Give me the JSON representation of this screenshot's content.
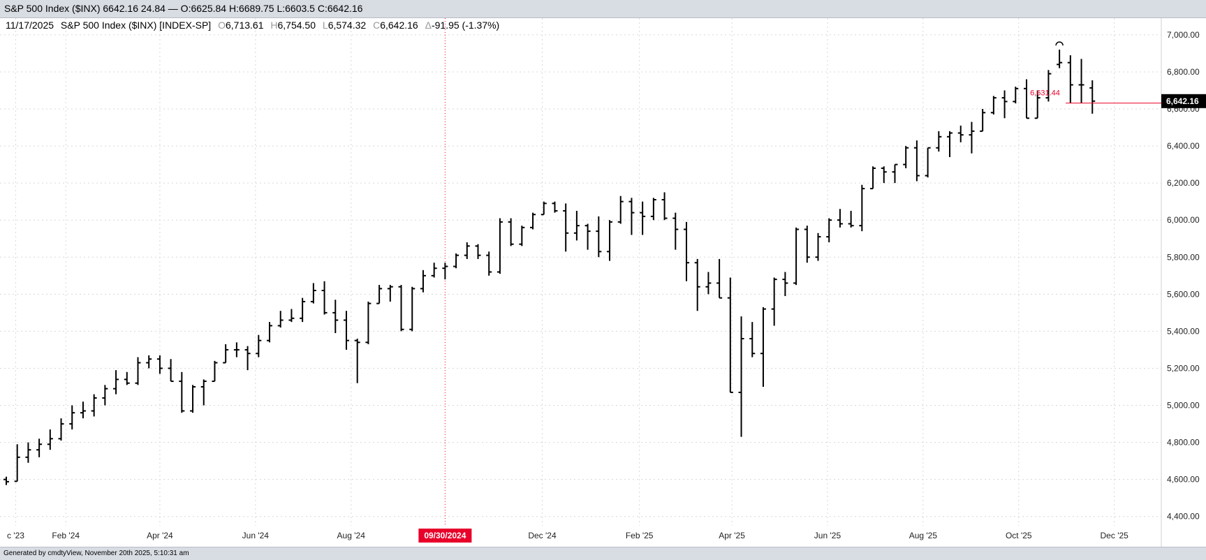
{
  "window": {
    "title": "S&P 500 Index ($INX) 6642.16 24.84 — O:6625.84 H:6689.75 L:6603.5 C:6642.16"
  },
  "footer": {
    "generated": "Generated by cmdtyView, November 20th 2025, 5:10:31 am"
  },
  "chart_data": {
    "type": "ohlc",
    "symbol": "S&P 500 Index ($INX) [INDEX-SP]",
    "header": {
      "date": "11/17/2025",
      "name": "S&P 500 Index ($INX) [INDEX-SP]",
      "open_label": "O",
      "open": "6,713.61",
      "high_label": "H",
      "high": "6,754.50",
      "low_label": "L",
      "low": "6,574.32",
      "close_label": "C",
      "close": "6,642.16",
      "change_label": "Δ",
      "change": "-91.95 (-1.37%)"
    },
    "y_axis": {
      "ylim": [
        4350,
        7090
      ],
      "ticks": [
        "7,000.00",
        "6,800.00",
        "6,600.00",
        "6,400.00",
        "6,200.00",
        "6,000.00",
        "5,800.00",
        "5,600.00",
        "5,400.00",
        "5,200.00",
        "5,000.00",
        "4,800.00",
        "4,600.00",
        "4,400.00"
      ],
      "tick_values": [
        7000,
        6800,
        6600,
        6400,
        6200,
        6000,
        5800,
        5600,
        5400,
        5200,
        5000,
        4800,
        4600,
        4400
      ]
    },
    "x_axis": {
      "xlim": [
        "2023-12-21",
        "2025-12-31"
      ],
      "ticks": [
        {
          "label": "c '23",
          "date": "2023-12-31"
        },
        {
          "label": "Feb '24",
          "date": "2024-02-01"
        },
        {
          "label": "Apr '24",
          "date": "2024-04-01"
        },
        {
          "label": "Jun '24",
          "date": "2024-06-01"
        },
        {
          "label": "Aug '24",
          "date": "2024-08-01"
        },
        {
          "label": "Dec '24",
          "date": "2024-12-01"
        },
        {
          "label": "Feb '25",
          "date": "2025-02-01"
        },
        {
          "label": "Apr '25",
          "date": "2025-04-01"
        },
        {
          "label": "Jun '25",
          "date": "2025-06-01"
        },
        {
          "label": "Aug '25",
          "date": "2025-08-01"
        },
        {
          "label": "Oct '25",
          "date": "2025-10-01"
        },
        {
          "label": "Dec '25",
          "date": "2025-12-01"
        }
      ]
    },
    "grid": true,
    "crosshair": {
      "date": "2024-09-30",
      "label": "09/30/2024"
    },
    "last_price": {
      "value": 6642.16,
      "label": "6,642.16"
    },
    "reference_line": {
      "value": 6631.44,
      "label": "6,631.44",
      "from_date": "2025-10-31"
    },
    "colors": {
      "bars": "#000000",
      "accent": "#e8002a",
      "grid": "#d8d8d8"
    },
    "bars": [
      {
        "d": "2023-12-25",
        "o": 4600,
        "h": 4615,
        "l": 4570,
        "c": 4588
      },
      {
        "d": "2024-01-01",
        "o": 4590,
        "h": 4790,
        "l": 4590,
        "c": 4720
      },
      {
        "d": "2024-01-08",
        "o": 4720,
        "h": 4800,
        "l": 4690,
        "c": 4760
      },
      {
        "d": "2024-01-15",
        "o": 4760,
        "h": 4820,
        "l": 4720,
        "c": 4790
      },
      {
        "d": "2024-01-22",
        "o": 4790,
        "h": 4870,
        "l": 4760,
        "c": 4820
      },
      {
        "d": "2024-01-29",
        "o": 4820,
        "h": 4930,
        "l": 4810,
        "c": 4900
      },
      {
        "d": "2024-02-05",
        "o": 4900,
        "h": 5000,
        "l": 4870,
        "c": 4960
      },
      {
        "d": "2024-02-12",
        "o": 4960,
        "h": 5020,
        "l": 4930,
        "c": 4970
      },
      {
        "d": "2024-02-19",
        "o": 4970,
        "h": 5060,
        "l": 4940,
        "c": 5040
      },
      {
        "d": "2024-02-26",
        "o": 5040,
        "h": 5110,
        "l": 5000,
        "c": 5090
      },
      {
        "d": "2024-03-04",
        "o": 5090,
        "h": 5190,
        "l": 5060,
        "c": 5140
      },
      {
        "d": "2024-03-11",
        "o": 5140,
        "h": 5180,
        "l": 5110,
        "c": 5120
      },
      {
        "d": "2024-03-18",
        "o": 5120,
        "h": 5260,
        "l": 5110,
        "c": 5230
      },
      {
        "d": "2024-03-25",
        "o": 5230,
        "h": 5270,
        "l": 5200,
        "c": 5250
      },
      {
        "d": "2024-04-01",
        "o": 5250,
        "h": 5270,
        "l": 5170,
        "c": 5200
      },
      {
        "d": "2024-04-08",
        "o": 5200,
        "h": 5250,
        "l": 5130,
        "c": 5130
      },
      {
        "d": "2024-04-15",
        "o": 5130,
        "h": 5180,
        "l": 4960,
        "c": 4970
      },
      {
        "d": "2024-04-22",
        "o": 4970,
        "h": 5110,
        "l": 4960,
        "c": 5100
      },
      {
        "d": "2024-04-29",
        "o": 5100,
        "h": 5140,
        "l": 5000,
        "c": 5130
      },
      {
        "d": "2024-05-06",
        "o": 5130,
        "h": 5240,
        "l": 5130,
        "c": 5230
      },
      {
        "d": "2024-05-13",
        "o": 5230,
        "h": 5330,
        "l": 5230,
        "c": 5300
      },
      {
        "d": "2024-05-20",
        "o": 5300,
        "h": 5340,
        "l": 5260,
        "c": 5300
      },
      {
        "d": "2024-05-27",
        "o": 5300,
        "h": 5320,
        "l": 5190,
        "c": 5280
      },
      {
        "d": "2024-06-03",
        "o": 5280,
        "h": 5380,
        "l": 5260,
        "c": 5350
      },
      {
        "d": "2024-06-10",
        "o": 5350,
        "h": 5450,
        "l": 5340,
        "c": 5430
      },
      {
        "d": "2024-06-17",
        "o": 5430,
        "h": 5510,
        "l": 5420,
        "c": 5460
      },
      {
        "d": "2024-06-24",
        "o": 5460,
        "h": 5520,
        "l": 5450,
        "c": 5470
      },
      {
        "d": "2024-07-01",
        "o": 5470,
        "h": 5580,
        "l": 5450,
        "c": 5560
      },
      {
        "d": "2024-07-08",
        "o": 5560,
        "h": 5660,
        "l": 5550,
        "c": 5620
      },
      {
        "d": "2024-07-15",
        "o": 5620,
        "h": 5670,
        "l": 5490,
        "c": 5500
      },
      {
        "d": "2024-07-22",
        "o": 5500,
        "h": 5570,
        "l": 5390,
        "c": 5460
      },
      {
        "d": "2024-07-29",
        "o": 5460,
        "h": 5510,
        "l": 5300,
        "c": 5350
      },
      {
        "d": "2024-08-05",
        "o": 5350,
        "h": 5360,
        "l": 5120,
        "c": 5340
      },
      {
        "d": "2024-08-12",
        "o": 5340,
        "h": 5560,
        "l": 5330,
        "c": 5550
      },
      {
        "d": "2024-08-19",
        "o": 5550,
        "h": 5650,
        "l": 5550,
        "c": 5630
      },
      {
        "d": "2024-08-26",
        "o": 5630,
        "h": 5650,
        "l": 5560,
        "c": 5640
      },
      {
        "d": "2024-09-02",
        "o": 5640,
        "h": 5650,
        "l": 5400,
        "c": 5410
      },
      {
        "d": "2024-09-09",
        "o": 5410,
        "h": 5640,
        "l": 5400,
        "c": 5630
      },
      {
        "d": "2024-09-16",
        "o": 5630,
        "h": 5730,
        "l": 5610,
        "c": 5700
      },
      {
        "d": "2024-09-23",
        "o": 5700,
        "h": 5770,
        "l": 5690,
        "c": 5740
      },
      {
        "d": "2024-09-30",
        "o": 5740,
        "h": 5770,
        "l": 5680,
        "c": 5750
      },
      {
        "d": "2024-10-07",
        "o": 5750,
        "h": 5820,
        "l": 5740,
        "c": 5810
      },
      {
        "d": "2024-10-14",
        "o": 5810,
        "h": 5880,
        "l": 5790,
        "c": 5860
      },
      {
        "d": "2024-10-21",
        "o": 5860,
        "h": 5870,
        "l": 5790,
        "c": 5810
      },
      {
        "d": "2024-10-28",
        "o": 5810,
        "h": 5830,
        "l": 5700,
        "c": 5720
      },
      {
        "d": "2024-11-04",
        "o": 5720,
        "h": 6010,
        "l": 5710,
        "c": 5990
      },
      {
        "d": "2024-11-11",
        "o": 5990,
        "h": 6010,
        "l": 5860,
        "c": 5870
      },
      {
        "d": "2024-11-18",
        "o": 5870,
        "h": 5970,
        "l": 5860,
        "c": 5960
      },
      {
        "d": "2024-11-25",
        "o": 5960,
        "h": 6040,
        "l": 5950,
        "c": 6030
      },
      {
        "d": "2024-12-02",
        "o": 6030,
        "h": 6100,
        "l": 6030,
        "c": 6090
      },
      {
        "d": "2024-12-09",
        "o": 6090,
        "h": 6100,
        "l": 6040,
        "c": 6050
      },
      {
        "d": "2024-12-16",
        "o": 6050,
        "h": 6090,
        "l": 5830,
        "c": 5930
      },
      {
        "d": "2024-12-23",
        "o": 5930,
        "h": 6050,
        "l": 5890,
        "c": 5970
      },
      {
        "d": "2024-12-30",
        "o": 5970,
        "h": 5980,
        "l": 5840,
        "c": 5940
      },
      {
        "d": "2025-01-06",
        "o": 5940,
        "h": 6020,
        "l": 5800,
        "c": 5830
      },
      {
        "d": "2025-01-13",
        "o": 5830,
        "h": 6000,
        "l": 5780,
        "c": 5990
      },
      {
        "d": "2025-01-20",
        "o": 5990,
        "h": 6130,
        "l": 5980,
        "c": 6100
      },
      {
        "d": "2025-01-27",
        "o": 6100,
        "h": 6120,
        "l": 5920,
        "c": 6040
      },
      {
        "d": "2025-02-03",
        "o": 6040,
        "h": 6100,
        "l": 5920,
        "c": 6020
      },
      {
        "d": "2025-02-10",
        "o": 6020,
        "h": 6120,
        "l": 6000,
        "c": 6110
      },
      {
        "d": "2025-02-17",
        "o": 6110,
        "h": 6150,
        "l": 6000,
        "c": 6010
      },
      {
        "d": "2025-02-24",
        "o": 6010,
        "h": 6040,
        "l": 5840,
        "c": 5950
      },
      {
        "d": "2025-03-03",
        "o": 5950,
        "h": 5990,
        "l": 5670,
        "c": 5770
      },
      {
        "d": "2025-03-10",
        "o": 5770,
        "h": 5790,
        "l": 5510,
        "c": 5640
      },
      {
        "d": "2025-03-17",
        "o": 5640,
        "h": 5720,
        "l": 5600,
        "c": 5660
      },
      {
        "d": "2025-03-24",
        "o": 5660,
        "h": 5790,
        "l": 5580,
        "c": 5580
      },
      {
        "d": "2025-03-31",
        "o": 5580,
        "h": 5690,
        "l": 5070,
        "c": 5070
      },
      {
        "d": "2025-04-07",
        "o": 5070,
        "h": 5480,
        "l": 4830,
        "c": 5360
      },
      {
        "d": "2025-04-14",
        "o": 5360,
        "h": 5450,
        "l": 5260,
        "c": 5280
      },
      {
        "d": "2025-04-21",
        "o": 5280,
        "h": 5530,
        "l": 5100,
        "c": 5520
      },
      {
        "d": "2025-04-28",
        "o": 5520,
        "h": 5690,
        "l": 5430,
        "c": 5680
      },
      {
        "d": "2025-05-05",
        "o": 5680,
        "h": 5720,
        "l": 5590,
        "c": 5660
      },
      {
        "d": "2025-05-12",
        "o": 5660,
        "h": 5960,
        "l": 5650,
        "c": 5950
      },
      {
        "d": "2025-05-19",
        "o": 5950,
        "h": 5970,
        "l": 5770,
        "c": 5800
      },
      {
        "d": "2025-05-26",
        "o": 5800,
        "h": 5930,
        "l": 5780,
        "c": 5910
      },
      {
        "d": "2025-06-02",
        "o": 5910,
        "h": 6010,
        "l": 5880,
        "c": 6000
      },
      {
        "d": "2025-06-09",
        "o": 6000,
        "h": 6060,
        "l": 5960,
        "c": 5980
      },
      {
        "d": "2025-06-16",
        "o": 5980,
        "h": 6050,
        "l": 5960,
        "c": 5970
      },
      {
        "d": "2025-06-23",
        "o": 5970,
        "h": 6190,
        "l": 5940,
        "c": 6170
      },
      {
        "d": "2025-06-30",
        "o": 6170,
        "h": 6290,
        "l": 6170,
        "c": 6280
      },
      {
        "d": "2025-07-07",
        "o": 6280,
        "h": 6290,
        "l": 6200,
        "c": 6260
      },
      {
        "d": "2025-07-14",
        "o": 6260,
        "h": 6300,
        "l": 6200,
        "c": 6300
      },
      {
        "d": "2025-07-21",
        "o": 6300,
        "h": 6400,
        "l": 6280,
        "c": 6390
      },
      {
        "d": "2025-07-28",
        "o": 6390,
        "h": 6430,
        "l": 6210,
        "c": 6240
      },
      {
        "d": "2025-08-04",
        "o": 6240,
        "h": 6390,
        "l": 6230,
        "c": 6390
      },
      {
        "d": "2025-08-11",
        "o": 6390,
        "h": 6480,
        "l": 6370,
        "c": 6450
      },
      {
        "d": "2025-08-18",
        "o": 6450,
        "h": 6480,
        "l": 6340,
        "c": 6470
      },
      {
        "d": "2025-08-25",
        "o": 6470,
        "h": 6510,
        "l": 6420,
        "c": 6460
      },
      {
        "d": "2025-09-01",
        "o": 6460,
        "h": 6530,
        "l": 6360,
        "c": 6480
      },
      {
        "d": "2025-09-08",
        "o": 6480,
        "h": 6600,
        "l": 6480,
        "c": 6580
      },
      {
        "d": "2025-09-15",
        "o": 6580,
        "h": 6670,
        "l": 6570,
        "c": 6660
      },
      {
        "d": "2025-09-22",
        "o": 6660,
        "h": 6700,
        "l": 6550,
        "c": 6640
      },
      {
        "d": "2025-09-29",
        "o": 6640,
        "h": 6720,
        "l": 6630,
        "c": 6710
      },
      {
        "d": "2025-10-06",
        "o": 6710,
        "h": 6760,
        "l": 6550,
        "c": 6550
      },
      {
        "d": "2025-10-13",
        "o": 6550,
        "h": 6700,
        "l": 6550,
        "c": 6660
      },
      {
        "d": "2025-10-20",
        "o": 6660,
        "h": 6810,
        "l": 6640,
        "c": 6790
      },
      {
        "d": "2025-10-27",
        "o": 6840,
        "h": 6920,
        "l": 6820,
        "c": 6850
      },
      {
        "d": "2025-11-03",
        "o": 6850,
        "h": 6890,
        "l": 6630,
        "c": 6730
      },
      {
        "d": "2025-11-10",
        "o": 6730,
        "h": 6870,
        "l": 6630,
        "c": 6730
      },
      {
        "d": "2025-11-17",
        "o": 6713.61,
        "h": 6754.5,
        "l": 6574.32,
        "c": 6642.16
      }
    ]
  }
}
